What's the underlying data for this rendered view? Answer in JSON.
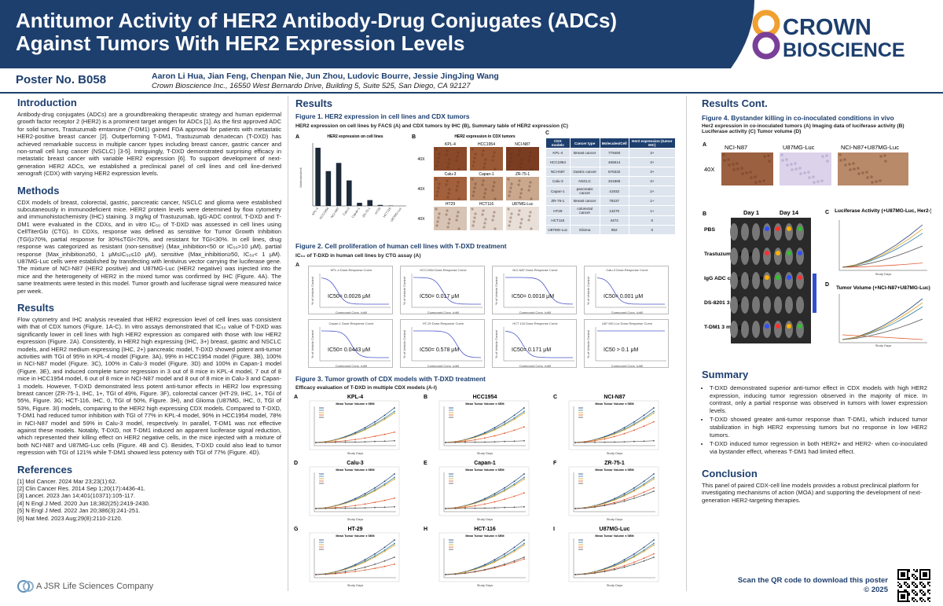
{
  "header": {
    "title": "Antitumor Activity of HER2 Antibody-Drug Conjugates (ADCs) Against Tumors With  HER2 Expression Levels",
    "logo": [
      "CROWN",
      "BIOSCIENCE"
    ],
    "poster_no": "Poster No. B058",
    "authors": "Aaron Li Hua, Jian Feng, Chenpan Nie, Jun Zhou, Ludovic Bourre, Jessie JingJing Wang",
    "affiliation": "Crown Bioscience Inc., 16550 West Bernardo Drive, Building 5, Suite 525, San Diego, CA 92127"
  },
  "left": {
    "introduction": {
      "heading": "Introduction",
      "text": "Antibody-drug conjugates (ADCs) are a groundbreaking therapeutic strategy and human epidermal growth factor receptor 2 (HER2) is a prominent target antigen for ADCs [1]. As the first approved ADC for solid tumors, Trastuzumab emtansine (T-DM1) gained FDA approval for patients with metastatic HER2-positive breast cancer [2]. Outperforming T-DM1, Trastuzumab deruxtecan (T-DXD) has achieved remarkable success in multiple cancer types including breast cancer, gastric cancer and non-small cell lung cancer (NSCLC) [3-5]. Intriguingly, T-DXD demonstrated surprising efficacy in metastatic breast cancer with variable HER2 expression [6]. To support development of next-generation HER2 ADCs, we established a preclinical panel of cell lines and cell line-derived xenograft (CDX) with varying HER2 expression levels."
    },
    "methods": {
      "heading": "Methods",
      "text": "CDX models of breast, colorectal, gastric, pancreatic cancer, NSCLC and glioma were established subcutaneously in immunodeficient mice. HER2 protein levels were determined by flow cytometry and immunohistochemistry (IHC) staining. 3 mg/kg of Trastuzumab, IgG-ADC control, T-DXD and T-DM1 were evaluated in the CDXs, and in vitro IC₅₀ of T-DXD was assessed in cell lines using CellTiterGlo (CTG). In CDXs, response was defined as sensitive for Tumor Growth Inhibition (TGI)≥70%, partial response for 30%≤TGI<70%, and resistant for TGI<30%. In cell lines, drug response was categorized as resistant (non-sensitive) (Max_inhibition<50 or IC₅₀>10 μM), partial response (Max_inhibition≥50, 1 μM≤IC₅₀≤10 μM), sensitive (Max_inhibition≥50, IC₅₀< 1 μM). U87MG-Luc cells were established by transfecting with lentivirus vector carrying the luciferase gene. The mixture of NCI-N87 (HER2 positive) and U87MG-Luc (HER2 negative) was injected into the mice and the heterogeneity of HER2 in the mixed tumor was confirmed by IHC (Figure. 4A). The same treatments were tested in this model. Tumor growth and luciferase signal were measured twice per week."
    },
    "results": {
      "heading": "Results",
      "text": "Flow cytometry and IHC analysis revealed that HER2 expression level of cell lines was consistent with that of CDX tumors (Figure. 1A-C). In vitro assays demonstrated that IC₅₀ value of T-DXD was significantly lower in cell lines with high HER2 expression as compared with those with low HER2 expression (Figure. 2A). Consistently, in HER2 high expressing (IHC, 3+) breast, gastric and NSCLC models, and HER2 medium expressing (IHC, 2+) pancreatic model, T-DXD showed potent anti-tumor activities with TGI of 95% in KPL-4 model (Figure. 3A), 99% in HCC1954 model (Figure. 3B), 100% in NCI-N87 model (Figure. 3C), 100% in Calu-3 model (Figure. 3D) and 100% in Capan-1 model (Figure. 3E), and induced complete tumor regression in 3 out of 8 mice in KPL-4 model, 7 out of 8 mice in HCC1954 model, 6 out of 8 mice in NCI-N87 model and 8 out of 8 mice in Calu-3 and Capan-1 models. However, T-DXD demonstrated less potent anti-tumor effects in HER2 low expressing breast cancer (ZR-75-1, IHC, 1+, TGI of 49%, Figure. 3F), colorectal cancer (HT-29, IHC, 1+, TGI of 55%, Figure. 3G; HCT-116, IHC, 0, TGI of 50%, Figure. 3H), and Glioma (U87MG, IHC, 0, TGI of 53%, Figure. 3I) models, comparing to the HER2 high expressing CDX models. Compared to T-DXD, T-DM1 had reduced tumor inhibition with TGI of 77% in KPL-4 model, 90% in HCC1954 model, 78% in NCI-N87 model and 59% in Calu-3 model, respectively. In parallel, T-DM1 was not effective against these models. Notably, T-DXD, not T-DM1 induced an apparent luciferase signal reduction, which represented their killing effect on HER2 negative cells, in the mice injected with a mixture of both NCI-N87 and U87MG-Luc cells (Figure. 4B and C). Besides, T-DXD could also lead to tumor regression with TGI of 121% while T-DM1 showed less potency with TGI of 77% (Figure. 4D)."
    },
    "references": {
      "heading": "References",
      "items": [
        "[1] Mol Cancer. 2024 Mar 23;23(1):62.",
        "[2] Clin Cancer Res. 2014 Sep 1;20(17):4436-41.",
        "[3] Lancet. 2023 Jan 14;401(10371):105-117.",
        "[4] N Engl J Med. 2020 Jun 18;382(25):2419-2430.",
        "[5] N Engl J Med. 2022 Jan 20;386(3):241-251.",
        "[6] Nat Med. 2023 Aug;29(8):2110-2120."
      ]
    },
    "company": "A JSR Life Sciences Company"
  },
  "middle": {
    "heading": "Results",
    "figure1": {
      "title": "Figure 1. HER2 expression in cell lines and CDX tumors",
      "subtitle": "HER2 expression on cell lines by FACS (A) and CDX tumors by IHC (B), Summary table of HER2 expression (C)",
      "panel_a": {
        "letter": "A",
        "title": "HER2 expression on cell lines",
        "y_label": "Molecules/cell"
      },
      "panel_b": {
        "letter": "B",
        "title": "HER2 expression in CDX tumors",
        "magnification": "40X",
        "tumors": [
          "KPL-4",
          "HCC1954",
          "NCI-N87",
          "Calu-3",
          "Capan-1",
          "ZR-75-1",
          "HT29",
          "HCT116",
          "U87MG-Luc"
        ]
      },
      "panel_c": {
        "letter": "C",
        "table": {
          "headers": [
            "CDX models",
            "Cancer type",
            "Molecules/Cell",
            "Her2 expression (tumor IHC)"
          ],
          "rows": [
            [
              "KPL-4",
              "Breast cancer",
              779450,
              "3+"
            ],
            [
              "HCC1954",
              null,
              466514,
              "3+"
            ],
            [
              "NCI-N87",
              "Gastric cancer",
              576332,
              "3+"
            ],
            [
              "Calu-3",
              "NSCLC",
              341866,
              "3+"
            ],
            [
              "Capan-1",
              "pancreatic cancer",
              41932,
              "2+"
            ],
            [
              "ZR-75-1",
              "Breast cancer",
              78237,
              "1+"
            ],
            [
              "HT29",
              "colorectal cancer",
              13270,
              "1+"
            ],
            [
              "HCT116",
              null,
              4472,
              "0"
            ],
            [
              "U87MG-Luc",
              "Glioma",
              952,
              "0"
            ]
          ]
        }
      }
    },
    "figure2": {
      "title": "Figure 2. Cell proliferation of human cell lines with T-DXD treatment",
      "subtitle": "IC₅₀ of T-DXD in human cell lines by CTG assay (A)",
      "letter": "A",
      "y_label": "% of Vehicle Control",
      "x_label": "Compound Conc. (μM)",
      "curves": [
        {
          "title": "KPL-4 Dose-Response Curve",
          "ic50": "IC50= 0.0026 μM"
        },
        {
          "title": "HCC1954 Dose-Response Curve",
          "ic50": "IC50= 0.017 μM"
        },
        {
          "title": "NCI-N87 Dose-Response Curve",
          "ic50": "IC50= 0.0018 μM"
        },
        {
          "title": "Calu-3 Dose-Response Curve",
          "ic50": "IC50= 0.001 μM"
        },
        {
          "title": "Capan-1 Dose-Response Curve",
          "ic50": "IC50= 0.0443 μM"
        },
        {
          "title": "HT-29 Dose-Response Curve",
          "ic50": "IC50= 0.578 μM"
        },
        {
          "title": "HCT 116 Dose-Response Curve",
          "ic50": "IC50= 0.171 μM"
        },
        {
          "title": "U87 MG-Luc Dose-Response Curve",
          "ic50": "IC50 > 0.1 μM"
        }
      ]
    },
    "figure3": {
      "title": "Figure 3. Tumor growth of CDX models with T-DXD treatment",
      "subtitle": "Efficacy evaluation of T-DXD in multiple CDX models (A-I)",
      "chart_title": "Mean Tumor Volume ± SEM",
      "x_label": "Study Days",
      "panels": [
        {
          "letter": "A",
          "name": "KPL-4"
        },
        {
          "letter": "B",
          "name": "HCC1954"
        },
        {
          "letter": "C",
          "name": "NCI-N87"
        },
        {
          "letter": "D",
          "name": "Calu-3"
        },
        {
          "letter": "E",
          "name": "Capan-1"
        },
        {
          "letter": "F",
          "name": "ZR-75-1"
        },
        {
          "letter": "G",
          "name": "HT-29"
        },
        {
          "letter": "H",
          "name": "HCT-116"
        },
        {
          "letter": "I",
          "name": "U87MG-Luc"
        }
      ]
    }
  },
  "right": {
    "heading": "Results Cont.",
    "figure4": {
      "title": "Figure 4. Bystander killing in co-inoculated conditions in vivo",
      "subtitle": "Her2 expression in co-inoculated tumors (A) Imaging data of luciferase activity (B) Luciferase activity (C) Tumor volume (D)",
      "letters": [
        "A",
        "B",
        "C",
        "D"
      ],
      "ihc_labels": [
        "NCI-N87",
        "U87MG-Luc",
        "NCI-N87+U87MG-Luc"
      ],
      "magnification": "40X",
      "days": [
        "Day 1",
        "Day 14"
      ],
      "groups": [
        "PBS",
        "Trastuzumab 3 mg/kg",
        "IgG ADC control 3 mg/kg",
        "DS-8201 3 mg/kg",
        "T-DM1 3 mg/kg"
      ],
      "luciferase_title": "Luciferase Activity (+U87MG-Luc, Her2-)",
      "volume_title": "Tumor Volume (+NCI-N87+U87MG-Luc)",
      "x_label": "Study Days"
    },
    "summary": {
      "heading": "Summary",
      "bullets": [
        "T-DXD demonstrated superior anti-tumor effect in CDX models with high HER2 expression, inducing tumor regression observed in the majority of mice. In contrast, only a partial response was observed in tumors with lower expression levels.",
        "T-DXD showed greater anti-tumor response than T-DM1, which induced tumor stabilization in high HER2 expressing tumors but no response in low HER2 tumors.",
        "T-DXD induced tumor regression in both HER2+ and HER2- when co-inoculated via bystander effect, whereas T-DM1 had limited effect."
      ]
    },
    "conclusion": {
      "heading": "Conclusion",
      "text": "This panel of paired CDX-cell line models provides a robust preclinical platform for investigating mechanisms of action (MOA) and supporting the development of next-generation HER2-targeting therapies."
    },
    "qr_text": [
      "Scan the QR code to download this poster",
      "© 2025"
    ]
  }
}
